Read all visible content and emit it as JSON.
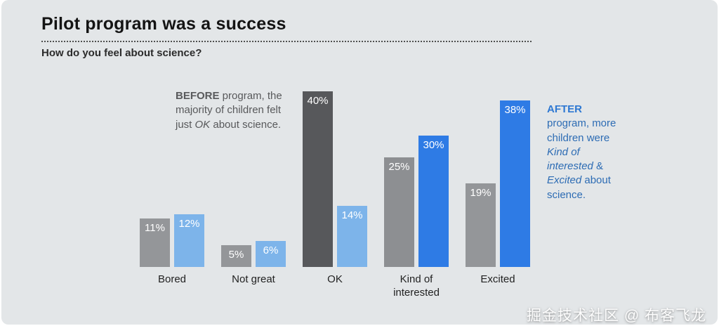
{
  "title": "Pilot program was a success",
  "subtitle": "How do you feel about science?",
  "watermark": "掘金技术社区 @ 布客飞龙",
  "annotations": {
    "before": {
      "color": "#58595b",
      "segments": [
        {
          "text": "BEFORE",
          "bold": true
        },
        {
          "text": " program, the majority of children felt just "
        },
        {
          "text": "OK",
          "italic": true
        },
        {
          "text": " about science."
        }
      ]
    },
    "after": {
      "color": "#2d6cb4",
      "segments": [
        {
          "text": "AFTER",
          "bold": true,
          "color": "#2e78d2"
        },
        {
          "text": " program, more children were "
        },
        {
          "text": "Kind of interested",
          "italic": true
        },
        {
          "text": " & "
        },
        {
          "text": "Excited",
          "italic": true
        },
        {
          "text": " about science."
        }
      ]
    }
  },
  "chart_data": {
    "type": "bar",
    "title": "Pilot program was a success",
    "subtitle": "How do you feel about science?",
    "categories": [
      "Bored",
      "Not great",
      "OK",
      "Kind of interested",
      "Excited"
    ],
    "series": [
      {
        "name": "BEFORE",
        "values": [
          11,
          5,
          40,
          25,
          19
        ],
        "colors": [
          "#949699",
          "#949699",
          "#57585b",
          "#8d8f92",
          "#949699"
        ]
      },
      {
        "name": "AFTER",
        "values": [
          12,
          6,
          14,
          30,
          38
        ],
        "colors": [
          "#7db4ea",
          "#7db4ea",
          "#7db4ea",
          "#2e7be5",
          "#2e7be5"
        ]
      }
    ],
    "value_suffix": "%",
    "value_labels": "inside-top",
    "xlabel": "",
    "ylabel": "",
    "ylim": [
      0,
      40
    ],
    "grid": false,
    "legend": "none (inline annotations instead)"
  },
  "colors": {
    "background": "#e3e6e8",
    "title_text": "#141414",
    "bright_blue": "#2e7be5",
    "light_blue": "#7db4ea",
    "dark_gray": "#57585b",
    "medium_gray": "#949699"
  }
}
